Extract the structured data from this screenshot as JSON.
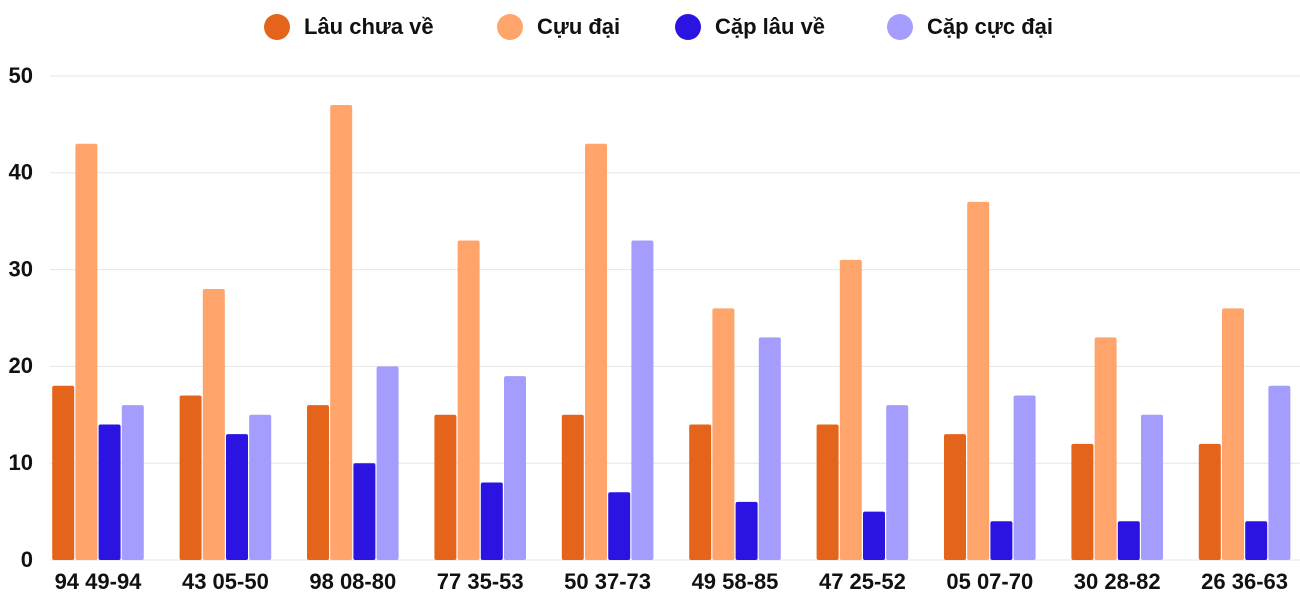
{
  "chart_data": {
    "type": "bar",
    "categories": [
      "94 49-94",
      "43 05-50",
      "98 08-80",
      "77 35-53",
      "50 37-73",
      "49 58-85",
      "47 25-52",
      "05 07-70",
      "30 28-82",
      "26 36-63"
    ],
    "series": [
      {
        "name": "Lâu chưa về",
        "color": "#e5641b",
        "values": [
          18,
          17,
          16,
          15,
          15,
          14,
          14,
          13,
          12,
          12
        ]
      },
      {
        "name": "Cựu đại",
        "color": "#ffa56c",
        "values": [
          43,
          28,
          47,
          33,
          43,
          26,
          31,
          37,
          23,
          26
        ]
      },
      {
        "name": "Cặp lâu về",
        "color": "#2b14e2",
        "values": [
          14,
          13,
          10,
          8,
          7,
          6,
          5,
          4,
          4,
          4
        ]
      },
      {
        "name": "Cặp cực đại",
        "color": "#a49dfd",
        "values": [
          16,
          15,
          20,
          19,
          33,
          23,
          16,
          17,
          15,
          18
        ]
      }
    ],
    "ylim": [
      0,
      50
    ],
    "yticks": [
      0,
      10,
      20,
      30,
      40,
      50
    ],
    "grid": true,
    "legend": "top"
  }
}
